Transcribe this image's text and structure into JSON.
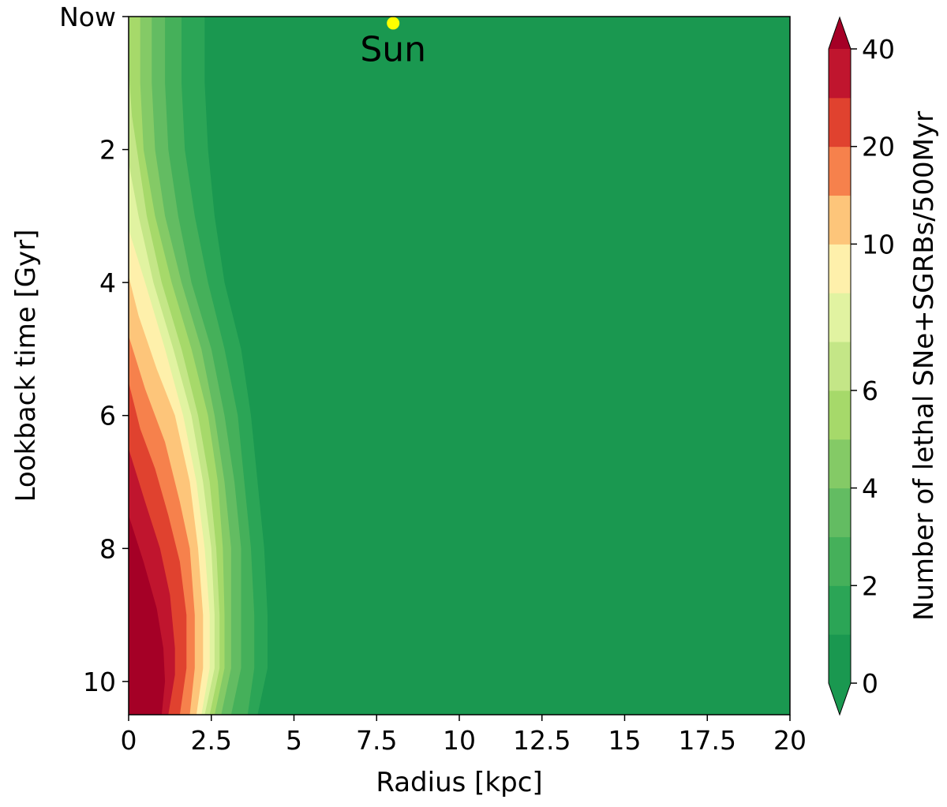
{
  "chart_data": {
    "type": "heatmap",
    "title": "",
    "xlabel": "Radius [kpc]",
    "ylabel": "Lookback time [Gyr]",
    "xlim": [
      0,
      20
    ],
    "ylim": [
      10.5,
      0
    ],
    "y_inverted": true,
    "xticks": [
      {
        "value": 0,
        "label": "0"
      },
      {
        "value": 2.5,
        "label": "2.5"
      },
      {
        "value": 5,
        "label": "5"
      },
      {
        "value": 7.5,
        "label": "7.5"
      },
      {
        "value": 10,
        "label": "10"
      },
      {
        "value": 12.5,
        "label": "12.5"
      },
      {
        "value": 15,
        "label": "15"
      },
      {
        "value": 17.5,
        "label": "17.5"
      },
      {
        "value": 20,
        "label": "20"
      }
    ],
    "yticks": [
      {
        "value": 0,
        "label": "Now"
      },
      {
        "value": 2,
        "label": "2"
      },
      {
        "value": 4,
        "label": "4"
      },
      {
        "value": 6,
        "label": "6"
      },
      {
        "value": 8,
        "label": "8"
      },
      {
        "value": 10,
        "label": "10"
      }
    ],
    "background_color": "#1a9850",
    "contour_bands": [
      {
        "level": 1,
        "color": "#2ba556",
        "boundary": [
          [
            2.3,
            0
          ],
          [
            2.3,
            1
          ],
          [
            2.4,
            2
          ],
          [
            2.6,
            3
          ],
          [
            2.9,
            4
          ],
          [
            3.4,
            5
          ],
          [
            3.7,
            6
          ],
          [
            3.9,
            7
          ],
          [
            4.1,
            8
          ],
          [
            4.2,
            9
          ],
          [
            4.2,
            9.8
          ],
          [
            3.9,
            10.5
          ]
        ]
      },
      {
        "level": 2,
        "color": "#45b05a",
        "boundary": [
          [
            1.6,
            0
          ],
          [
            1.6,
            1
          ],
          [
            1.7,
            2
          ],
          [
            2.0,
            3
          ],
          [
            2.4,
            4
          ],
          [
            2.9,
            5
          ],
          [
            3.3,
            6
          ],
          [
            3.5,
            7
          ],
          [
            3.7,
            8
          ],
          [
            3.8,
            9
          ],
          [
            3.8,
            9.8
          ],
          [
            3.6,
            10.5
          ]
        ]
      },
      {
        "level": 3,
        "color": "#63bc62",
        "boundary": [
          [
            1.1,
            0
          ],
          [
            1.1,
            1
          ],
          [
            1.2,
            2
          ],
          [
            1.5,
            3
          ],
          [
            1.9,
            4
          ],
          [
            2.5,
            5
          ],
          [
            2.9,
            6
          ],
          [
            3.2,
            7
          ],
          [
            3.4,
            8
          ],
          [
            3.4,
            9
          ],
          [
            3.4,
            9.8
          ],
          [
            3.1,
            10.5
          ]
        ]
      },
      {
        "level": 4,
        "color": "#84ca66",
        "boundary": [
          [
            0.7,
            0
          ],
          [
            0.7,
            1
          ],
          [
            0.8,
            2
          ],
          [
            1.1,
            3
          ],
          [
            1.6,
            4
          ],
          [
            2.2,
            5
          ],
          [
            2.6,
            6
          ],
          [
            2.9,
            7
          ],
          [
            3.1,
            8
          ],
          [
            3.1,
            9
          ],
          [
            3.1,
            9.8
          ],
          [
            2.8,
            10.5
          ]
        ]
      },
      {
        "level": 5,
        "color": "#a6d96a",
        "boundary": [
          [
            0.35,
            0
          ],
          [
            0.35,
            1
          ],
          [
            0.45,
            2
          ],
          [
            0.8,
            3
          ],
          [
            1.3,
            4
          ],
          [
            1.9,
            5
          ],
          [
            2.4,
            6
          ],
          [
            2.7,
            7
          ],
          [
            2.85,
            8
          ],
          [
            2.9,
            9
          ],
          [
            2.9,
            9.8
          ],
          [
            2.6,
            10.5
          ]
        ]
      },
      {
        "level": 6,
        "color": "#c4e687",
        "boundary": [
          [
            0,
            0.8
          ],
          [
            0.1,
            1.5
          ],
          [
            0.25,
            2
          ],
          [
            0.55,
            3
          ],
          [
            1.0,
            4
          ],
          [
            1.6,
            5
          ],
          [
            2.1,
            6
          ],
          [
            2.45,
            7
          ],
          [
            2.65,
            8
          ],
          [
            2.75,
            9
          ],
          [
            2.75,
            9.8
          ],
          [
            2.45,
            10.5
          ]
        ]
      },
      {
        "level": 7,
        "color": "#e1f3a1",
        "boundary": [
          [
            0,
            2.2
          ],
          [
            0.3,
            3
          ],
          [
            0.75,
            4
          ],
          [
            1.35,
            5
          ],
          [
            1.9,
            6
          ],
          [
            2.25,
            7
          ],
          [
            2.5,
            8
          ],
          [
            2.6,
            9
          ],
          [
            2.6,
            9.8
          ],
          [
            2.3,
            10.5
          ]
        ]
      },
      {
        "level": 8,
        "color": "#fef0ab",
        "boundary": [
          [
            0,
            3.2
          ],
          [
            0.5,
            4
          ],
          [
            1.1,
            5
          ],
          [
            1.65,
            6
          ],
          [
            2.05,
            7
          ],
          [
            2.3,
            8
          ],
          [
            2.45,
            9
          ],
          [
            2.45,
            9.8
          ],
          [
            2.2,
            10.5
          ]
        ]
      },
      {
        "level": 9,
        "color": "#fdc57a",
        "boundary": [
          [
            0,
            3.9
          ],
          [
            0.3,
            4.5
          ],
          [
            0.85,
            5.3
          ],
          [
            1.4,
            6
          ],
          [
            1.85,
            7
          ],
          [
            2.1,
            8
          ],
          [
            2.25,
            9
          ],
          [
            2.25,
            9.8
          ],
          [
            2.05,
            10.5
          ]
        ]
      },
      {
        "level": 10,
        "color": "#f6814c",
        "boundary": [
          [
            0,
            4.8
          ],
          [
            0.5,
            5.6
          ],
          [
            1.1,
            6.4
          ],
          [
            1.55,
            7.3
          ],
          [
            1.85,
            8
          ],
          [
            2.0,
            9
          ],
          [
            2.0,
            9.8
          ],
          [
            1.85,
            10.5
          ]
        ]
      },
      {
        "level": 11,
        "color": "#e0422f",
        "boundary": [
          [
            0,
            5.5
          ],
          [
            0.35,
            6.2
          ],
          [
            0.8,
            6.8
          ],
          [
            1.2,
            7.5
          ],
          [
            1.55,
            8.2
          ],
          [
            1.75,
            9
          ],
          [
            1.75,
            9.8
          ],
          [
            1.55,
            10.5
          ]
        ]
      },
      {
        "level": 12,
        "color": "#c0152e",
        "boundary": [
          [
            0,
            6.5
          ],
          [
            0.5,
            7.3
          ],
          [
            0.95,
            8
          ],
          [
            1.25,
            8.7
          ],
          [
            1.4,
            9.5
          ],
          [
            1.4,
            9.9
          ],
          [
            1.2,
            10.5
          ]
        ]
      },
      {
        "level": 13,
        "color": "#a50026",
        "boundary": [
          [
            0,
            7.5
          ],
          [
            0.45,
            8.2
          ],
          [
            0.85,
            8.9
          ],
          [
            1.05,
            9.5
          ],
          [
            1.1,
            10
          ],
          [
            1.0,
            10.5
          ]
        ]
      }
    ],
    "annotation": {
      "label": "Sun",
      "x": 8,
      "y": 0.1,
      "color": "#ffff00"
    },
    "colorbar": {
      "label": "Number of lethal SNe+SGRBs/500Myr",
      "levels": [
        0,
        1,
        2,
        3,
        4,
        5,
        6,
        7,
        8,
        10,
        15,
        20,
        30,
        40
      ],
      "colors": [
        "#1a9850",
        "#2ba556",
        "#45b05a",
        "#63bc62",
        "#84ca66",
        "#a6d96a",
        "#c4e687",
        "#e1f3a1",
        "#fef0ab",
        "#fdc57a",
        "#f6814c",
        "#e0422f",
        "#c0152e"
      ],
      "under_color": "#1a9850",
      "over_color": "#a50026",
      "ticks": [
        {
          "value": 0,
          "label": "0"
        },
        {
          "value": 2,
          "label": "2"
        },
        {
          "value": 4,
          "label": "4"
        },
        {
          "value": 6,
          "label": "6"
        },
        {
          "value": 10,
          "label": "10"
        },
        {
          "value": 20,
          "label": "20"
        },
        {
          "value": 40,
          "label": "40"
        }
      ],
      "extend": "both"
    }
  }
}
